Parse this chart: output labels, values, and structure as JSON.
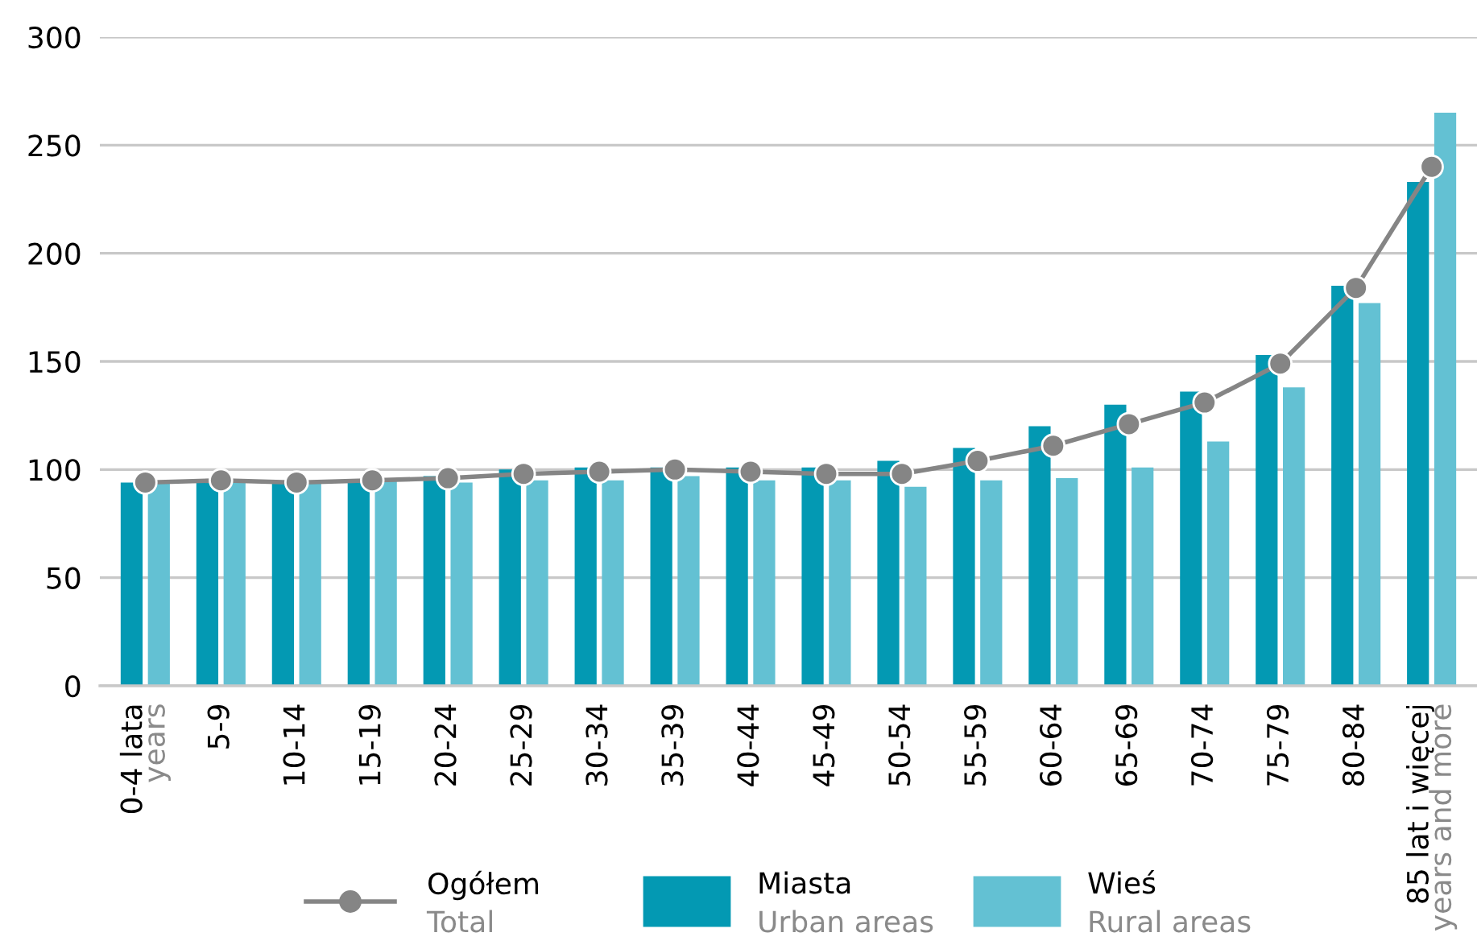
{
  "chart_data": {
    "type": "bar",
    "categories": [
      "0-4 lata\nyears",
      "5-9",
      "10-14",
      "15-19",
      "20-24",
      "25-29",
      "30-34",
      "35-39",
      "40-44",
      "45-49",
      "50-54",
      "55-59",
      "60-64",
      "65-69",
      "70-74",
      "75-79",
      "80-84",
      "85 lat i więcej\nyears and more"
    ],
    "series": [
      {
        "name": "Ogółem\nTotal",
        "type": "line",
        "color": "#858585",
        "marker": "circle",
        "values": [
          94,
          95,
          94,
          95,
          96,
          98,
          99,
          100,
          99,
          98,
          98,
          104,
          111,
          121,
          131,
          149,
          184,
          240
        ]
      },
      {
        "name": "Miasta\nUrban areas",
        "color": "#0399b3",
        "values": [
          94,
          95,
          94,
          95,
          97,
          100,
          101,
          101,
          101,
          101,
          104,
          110,
          120,
          130,
          136,
          153,
          185,
          233
        ]
      },
      {
        "name": "Wieś\nRural areas",
        "color": "#63c1d3",
        "values": [
          94,
          94,
          94,
          95,
          94,
          95,
          95,
          97,
          95,
          95,
          92,
          95,
          96,
          101,
          113,
          138,
          177,
          265
        ]
      }
    ],
    "ylim": [
      0,
      300
    ],
    "yticks": [
      0,
      50,
      100,
      150,
      200,
      250,
      300
    ],
    "grid": "y",
    "legend": "bottom"
  }
}
